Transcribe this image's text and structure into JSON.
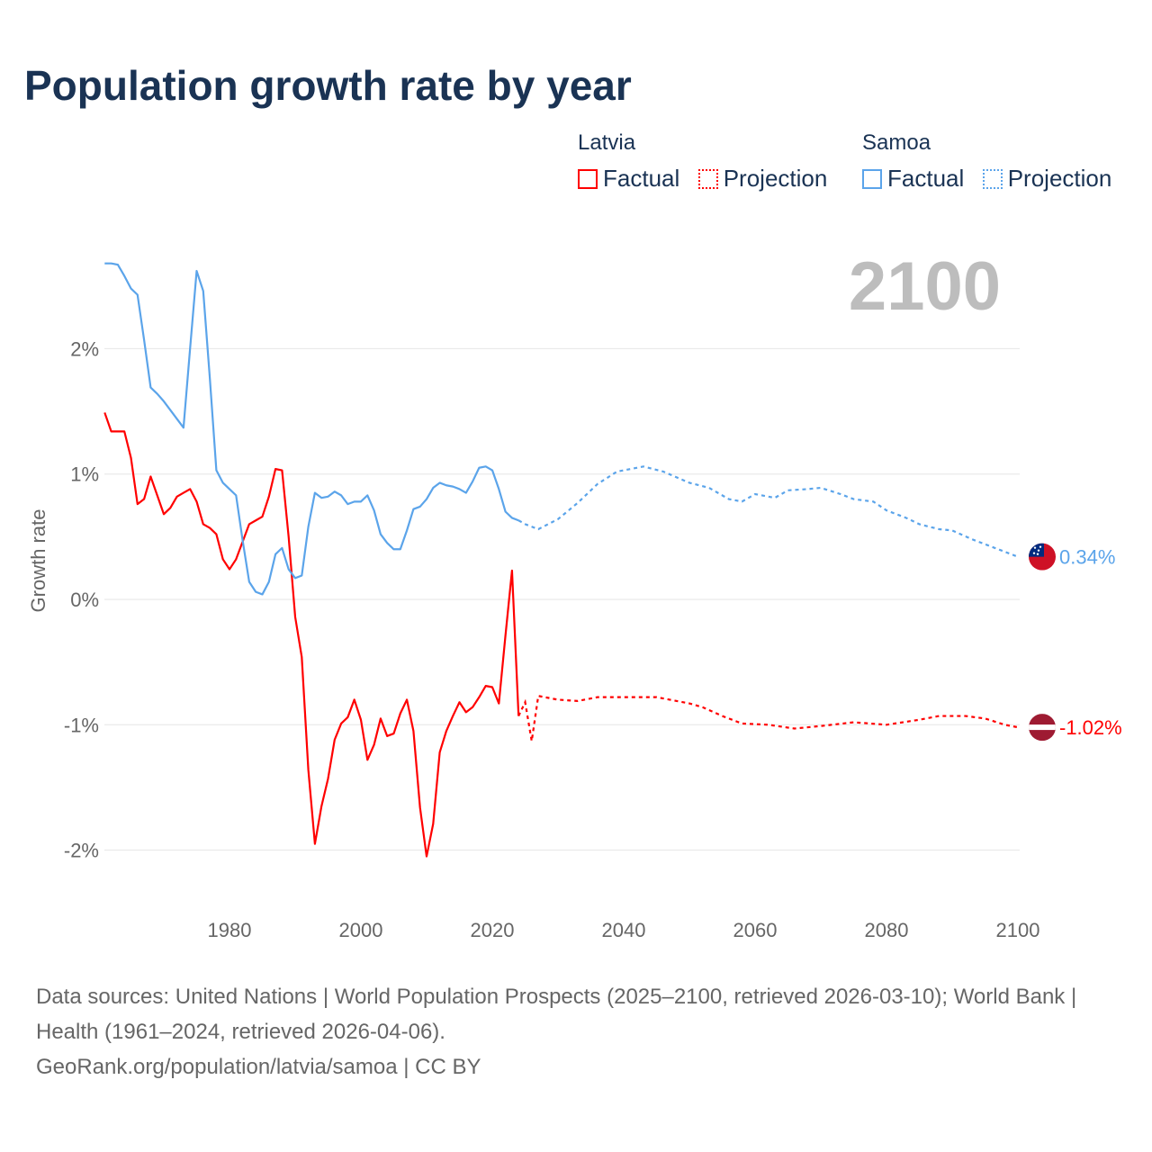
{
  "title": "Population growth rate by year",
  "current_year": "2100",
  "legend": [
    {
      "group": "Latvia",
      "factual": "Factual",
      "projection": "Projection",
      "color": "#ff0000"
    },
    {
      "group": "Samoa",
      "factual": "Factual",
      "projection": "Projection",
      "color": "#5ba4ea"
    }
  ],
  "footer": {
    "sources": "Data sources: United Nations | World Population Prospects (2025–2100, retrieved 2026-03-10); World Bank | Health (1961–2024, retrieved 2026-04-06).",
    "credit": "GeoRank.org/population/latvia/samoa | CC BY"
  },
  "chart_data": {
    "type": "line",
    "title": "Population growth rate by year",
    "xlabel": "",
    "ylabel": "Growth rate",
    "xlim": [
      1961,
      2100
    ],
    "ylim": [
      -2.5,
      2.8
    ],
    "x_ticks": [
      1980,
      2000,
      2020,
      2040,
      2060,
      2080,
      2100
    ],
    "y_ticks": [
      {
        "v": 2,
        "label": "2%"
      },
      {
        "v": 1,
        "label": "1%"
      },
      {
        "v": 0,
        "label": "0%"
      },
      {
        "v": -1,
        "label": "-1%"
      },
      {
        "v": -2,
        "label": "-2%"
      }
    ],
    "grid": true,
    "series": [
      {
        "name": "Latvia",
        "color": "#ff0000",
        "end_label": "-1.02%",
        "factual": {
          "start": 1961,
          "values": [
            1.49,
            1.34,
            1.34,
            1.34,
            1.13,
            0.76,
            0.8,
            0.98,
            0.83,
            0.68,
            0.73,
            0.82,
            0.85,
            0.88,
            0.78,
            0.6,
            0.57,
            0.52,
            0.32,
            0.24,
            0.32,
            0.46,
            0.6,
            0.63,
            0.66,
            0.82,
            1.04,
            1.03,
            0.5,
            -0.14,
            -0.46,
            -1.36,
            -1.95,
            -1.65,
            -1.43,
            -1.12,
            -0.99,
            -0.94,
            -0.8,
            -0.96,
            -1.28,
            -1.16,
            -0.95,
            -1.09,
            -1.07,
            -0.91,
            -0.8,
            -1.05,
            -1.66,
            -2.05,
            -1.79,
            -1.22,
            -1.05,
            -0.93,
            -0.82,
            -0.9,
            -0.86,
            -0.78,
            -0.69,
            -0.7,
            -0.83,
            -0.29,
            0.23,
            -0.93
          ]
        },
        "projection": {
          "x": [
            2024,
            2025,
            2026,
            2027,
            2030,
            2033,
            2036,
            2040,
            2045,
            2050,
            2052,
            2055,
            2058,
            2062,
            2066,
            2070,
            2075,
            2080,
            2085,
            2088,
            2092,
            2095,
            2098,
            2100
          ],
          "values": [
            -0.93,
            -0.82,
            -1.13,
            -0.77,
            -0.8,
            -0.81,
            -0.78,
            -0.78,
            -0.78,
            -0.83,
            -0.86,
            -0.93,
            -0.99,
            -1.0,
            -1.03,
            -1.01,
            -0.98,
            -1.0,
            -0.96,
            -0.93,
            -0.93,
            -0.95,
            -1.0,
            -1.02
          ]
        }
      },
      {
        "name": "Samoa",
        "color": "#5ba4ea",
        "end_label": "0.34%",
        "factual": {
          "start": 1961,
          "values": [
            2.68,
            2.68,
            2.67,
            2.58,
            2.48,
            2.43,
            2.07,
            1.69,
            1.64,
            1.58,
            1.51,
            1.44,
            1.37,
            2.0,
            2.62,
            2.46,
            1.77,
            1.03,
            0.93,
            0.88,
            0.83,
            0.47,
            0.14,
            0.06,
            0.04,
            0.14,
            0.36,
            0.41,
            0.24,
            0.17,
            0.19,
            0.58,
            0.85,
            0.81,
            0.82,
            0.86,
            0.83,
            0.76,
            0.78,
            0.78,
            0.83,
            0.71,
            0.52,
            0.45,
            0.4,
            0.4,
            0.55,
            0.72,
            0.74,
            0.8,
            0.89,
            0.93,
            0.91,
            0.9,
            0.88,
            0.85,
            0.94,
            1.05,
            1.06,
            1.03,
            0.88,
            0.7,
            0.65,
            0.63
          ]
        },
        "projection": {
          "x": [
            2024,
            2025,
            2027,
            2030,
            2033,
            2036,
            2039,
            2043,
            2046,
            2050,
            2053,
            2056,
            2058,
            2060,
            2063,
            2065,
            2068,
            2070,
            2073,
            2075,
            2078,
            2080,
            2083,
            2085,
            2088,
            2090,
            2093,
            2095,
            2098,
            2100
          ],
          "values": [
            0.63,
            0.6,
            0.56,
            0.64,
            0.77,
            0.92,
            1.02,
            1.06,
            1.02,
            0.93,
            0.89,
            0.8,
            0.78,
            0.84,
            0.81,
            0.87,
            0.88,
            0.89,
            0.84,
            0.8,
            0.78,
            0.71,
            0.65,
            0.6,
            0.56,
            0.55,
            0.48,
            0.44,
            0.38,
            0.34
          ]
        }
      }
    ]
  }
}
